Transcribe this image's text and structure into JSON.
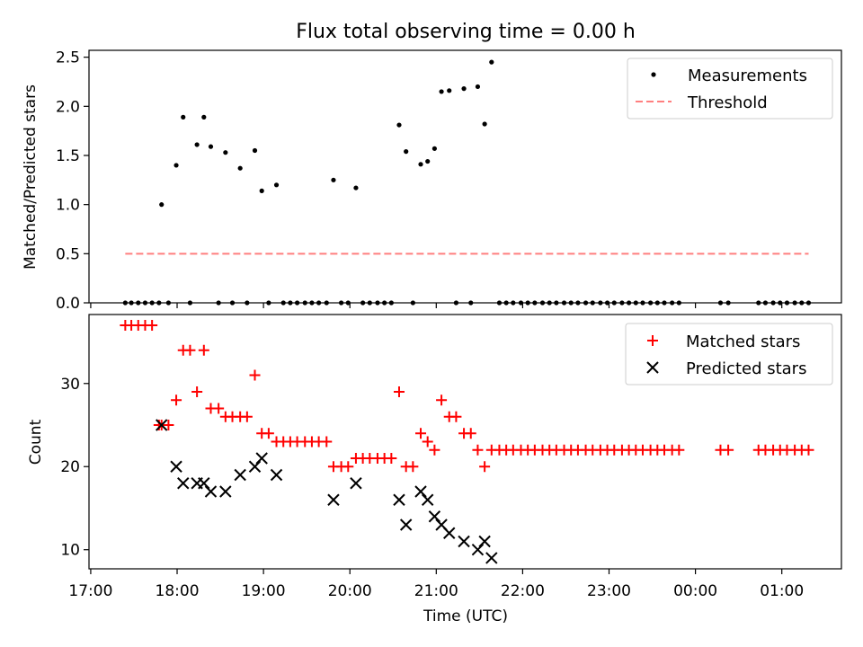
{
  "chart_data": [
    {
      "panel": "top",
      "type": "scatter",
      "title": "Flux total observing time = 0.00 h",
      "xlabel": "",
      "ylabel": "Matched/Predicted stars",
      "ylim": [
        0,
        2.57
      ],
      "yticks": [
        0.0,
        0.5,
        1.0,
        1.5,
        2.0,
        2.5
      ],
      "ytick_labels": [
        "0.0",
        "0.5",
        "1.0",
        "1.5",
        "2.0",
        "2.5"
      ],
      "legend": {
        "placement": "top-right",
        "entries": [
          "Measurements",
          "Threshold"
        ]
      },
      "series": [
        {
          "name": "Measurements",
          "style": "dot",
          "color": "#000000",
          "x": [
            17.4,
            17.47,
            17.55,
            17.63,
            17.71,
            17.79,
            17.82,
            17.9,
            17.99,
            18.07,
            18.15,
            18.23,
            18.31,
            18.39,
            18.48,
            18.56,
            18.64,
            18.73,
            18.81,
            18.9,
            18.98,
            19.06,
            19.15,
            19.23,
            19.31,
            19.39,
            19.48,
            19.56,
            19.64,
            19.73,
            19.81,
            19.9,
            19.98,
            20.07,
            20.15,
            20.23,
            20.32,
            20.4,
            20.48,
            20.57,
            20.65,
            20.73,
            20.82,
            20.9,
            20.98,
            21.06,
            21.15,
            21.23,
            21.32,
            21.4,
            21.48,
            21.56,
            21.64,
            21.73,
            21.81,
            21.89,
            21.98,
            22.06,
            22.14,
            22.23,
            22.31,
            22.39,
            22.48,
            22.56,
            22.64,
            22.73,
            22.81,
            22.9,
            22.98,
            23.06,
            23.15,
            23.23,
            23.31,
            23.39,
            23.48,
            23.56,
            23.64,
            23.73,
            23.81,
            24.29,
            24.38,
            24.73,
            24.81,
            24.9,
            24.98,
            25.06,
            25.15,
            25.23,
            25.31
          ],
          "y": [
            0,
            0,
            0,
            0,
            0,
            0,
            1.0,
            0,
            1.4,
            1.89,
            0,
            1.61,
            1.89,
            1.59,
            0,
            1.53,
            0,
            1.37,
            0,
            1.55,
            1.14,
            0,
            1.2,
            0,
            0,
            0,
            0,
            0,
            0,
            0,
            1.25,
            0,
            0,
            1.17,
            0,
            0,
            0,
            0,
            0,
            1.81,
            1.54,
            0,
            1.41,
            1.44,
            1.57,
            2.15,
            2.16,
            0,
            2.18,
            0,
            2.2,
            1.82,
            2.45,
            0,
            0,
            0,
            0,
            0,
            0,
            0,
            0,
            0,
            0,
            0,
            0,
            0,
            0,
            0,
            0,
            0,
            0,
            0,
            0,
            0,
            0,
            0,
            0,
            0,
            0,
            0,
            0,
            0,
            0,
            0,
            0,
            0,
            0,
            0,
            0
          ]
        },
        {
          "name": "Threshold",
          "style": "dashed-line",
          "color": "#ff7f7f",
          "x": [
            17.4,
            25.31
          ],
          "y": [
            0.5,
            0.5
          ]
        }
      ]
    },
    {
      "panel": "bottom",
      "type": "scatter",
      "title": "",
      "xlabel": "Time (UTC)",
      "ylabel": "Count",
      "ylim": [
        7.7,
        38.3
      ],
      "yticks": [
        10,
        20,
        30
      ],
      "ytick_labels": [
        "10",
        "20",
        "30"
      ],
      "legend": {
        "placement": "top-right",
        "entries": [
          "Matched stars",
          "Predicted stars"
        ]
      },
      "series": [
        {
          "name": "Matched stars",
          "style": "plus",
          "color": "#ff0000",
          "x": [
            17.4,
            17.47,
            17.55,
            17.63,
            17.71,
            17.79,
            17.82,
            17.9,
            17.99,
            18.07,
            18.15,
            18.23,
            18.31,
            18.39,
            18.48,
            18.56,
            18.64,
            18.73,
            18.81,
            18.9,
            18.98,
            19.06,
            19.15,
            19.23,
            19.31,
            19.39,
            19.48,
            19.56,
            19.64,
            19.73,
            19.81,
            19.9,
            19.98,
            20.07,
            20.15,
            20.23,
            20.32,
            20.4,
            20.48,
            20.57,
            20.65,
            20.73,
            20.82,
            20.9,
            20.98,
            21.06,
            21.15,
            21.23,
            21.32,
            21.4,
            21.48,
            21.56,
            21.64,
            21.73,
            21.81,
            21.89,
            21.98,
            22.06,
            22.14,
            22.23,
            22.31,
            22.39,
            22.48,
            22.56,
            22.64,
            22.73,
            22.81,
            22.9,
            22.98,
            23.06,
            23.15,
            23.23,
            23.31,
            23.39,
            23.48,
            23.56,
            23.64,
            23.73,
            23.81,
            24.29,
            24.38,
            24.73,
            24.81,
            24.9,
            24.98,
            25.06,
            25.15,
            25.23,
            25.31
          ],
          "y": [
            37,
            37,
            37,
            37,
            37,
            25,
            25,
            25,
            28,
            34,
            34,
            29,
            34,
            27,
            27,
            26,
            26,
            26,
            26,
            31,
            24,
            24,
            23,
            23,
            23,
            23,
            23,
            23,
            23,
            23,
            20,
            20,
            20,
            21,
            21,
            21,
            21,
            21,
            21,
            29,
            20,
            20,
            24,
            23,
            22,
            28,
            26,
            26,
            24,
            24,
            22,
            20,
            22,
            22,
            22,
            22,
            22,
            22,
            22,
            22,
            22,
            22,
            22,
            22,
            22,
            22,
            22,
            22,
            22,
            22,
            22,
            22,
            22,
            22,
            22,
            22,
            22,
            22,
            22,
            22,
            22,
            22,
            22,
            22,
            22,
            22,
            22,
            22,
            22
          ]
        },
        {
          "name": "Predicted stars",
          "style": "x",
          "color": "#000000",
          "x": [
            17.82,
            17.99,
            18.07,
            18.23,
            18.31,
            18.39,
            18.56,
            18.73,
            18.9,
            18.98,
            19.15,
            19.81,
            20.07,
            20.57,
            20.65,
            20.82,
            20.9,
            20.98,
            21.06,
            21.15,
            21.32,
            21.48,
            21.56,
            21.64
          ],
          "y": [
            25,
            20,
            18,
            18,
            18,
            17,
            17,
            19,
            20,
            21,
            19,
            16,
            18,
            16,
            13,
            17,
            16,
            14,
            13,
            12,
            11,
            10,
            11,
            9
          ]
        }
      ]
    }
  ],
  "x_axis": {
    "xlim": [
      16.98,
      25.69
    ],
    "ticks": [
      17,
      18,
      19,
      20,
      21,
      22,
      23,
      24,
      25
    ],
    "tick_labels": [
      "17:00",
      "18:00",
      "19:00",
      "20:00",
      "21:00",
      "22:00",
      "23:00",
      "00:00",
      "01:00"
    ]
  },
  "colors": {
    "matched": "#ff0000",
    "predicted": "#000000",
    "measurements": "#000000",
    "threshold": "#ff7f7f"
  }
}
